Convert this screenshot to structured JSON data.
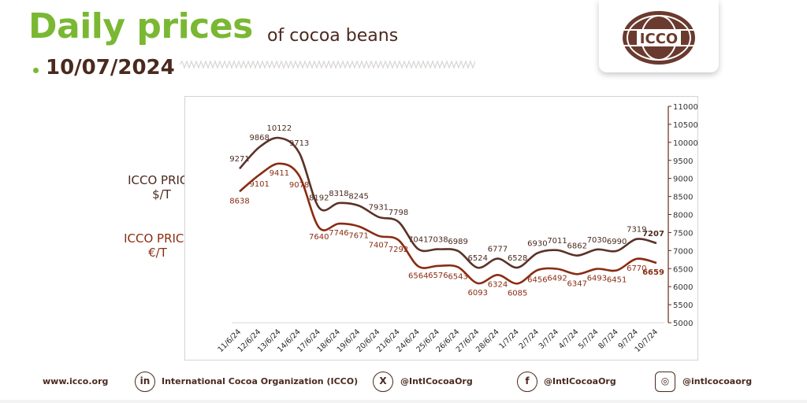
{
  "header": {
    "title_main": "Daily prices",
    "title_sub": "of cocoa beans",
    "date": "10/07/2024"
  },
  "logo": {
    "text": "ICCO"
  },
  "series_labels": {
    "usd_line1": "ICCO PRICE",
    "usd_line2": "$/T",
    "eur_line1": "ICCO PRICE",
    "eur_line2": "€/T"
  },
  "colors": {
    "green": "#7ab833",
    "usd_series": "#5a3228",
    "eur_series": "#8a2c12",
    "text_dark": "#4a2a1e"
  },
  "chart_data": {
    "type": "line",
    "categories": [
      "11/6/24",
      "12/6/24",
      "13/6/24",
      "14/6/24",
      "17/6/24",
      "18/6/24",
      "19/6/24",
      "20/6/24",
      "21/6/24",
      "24/6/24",
      "25/6/24",
      "26/6/24",
      "27/6/24",
      "28/6/24",
      "1/7/24",
      "2/7/24",
      "3/7/24",
      "4/7/24",
      "5/7/24",
      "8/7/24",
      "9/7/24",
      "10/7/24"
    ],
    "series": [
      {
        "key": "usd",
        "values": [
          9271,
          9868,
          10122,
          9713,
          8192,
          8318,
          8245,
          7931,
          7798,
          7041,
          7038,
          6989,
          6524,
          6777,
          6528,
          6930,
          7011,
          6862,
          7030,
          6990,
          7319,
          7207
        ]
      },
      {
        "key": "eur",
        "values": [
          8638,
          9101,
          9411,
          9078,
          7640,
          7746,
          7671,
          7407,
          7292,
          6564,
          6576,
          6543,
          6093,
          6324,
          6085,
          6456,
          6492,
          6347,
          6493,
          6451,
          6770,
          6659
        ]
      }
    ],
    "ylim": [
      5000,
      11000
    ],
    "yticks": [
      5000,
      5500,
      6000,
      6500,
      7000,
      7500,
      8000,
      8500,
      9000,
      9500,
      10000,
      10500,
      11000
    ],
    "y_axis_side": "right",
    "grid": false,
    "highlight_last": true
  },
  "footer": {
    "website": "www.icco.org",
    "linkedin": "International Cocoa Organization (ICCO)",
    "x_handle": "@IntlCocoaOrg",
    "facebook": "@IntlCocoaOrg",
    "instagram": "@intlcocoaorg",
    "linkedin_icon": "linkedin-icon",
    "x_icon": "x-icon",
    "facebook_icon": "facebook-icon",
    "instagram_icon": "instagram-icon"
  }
}
